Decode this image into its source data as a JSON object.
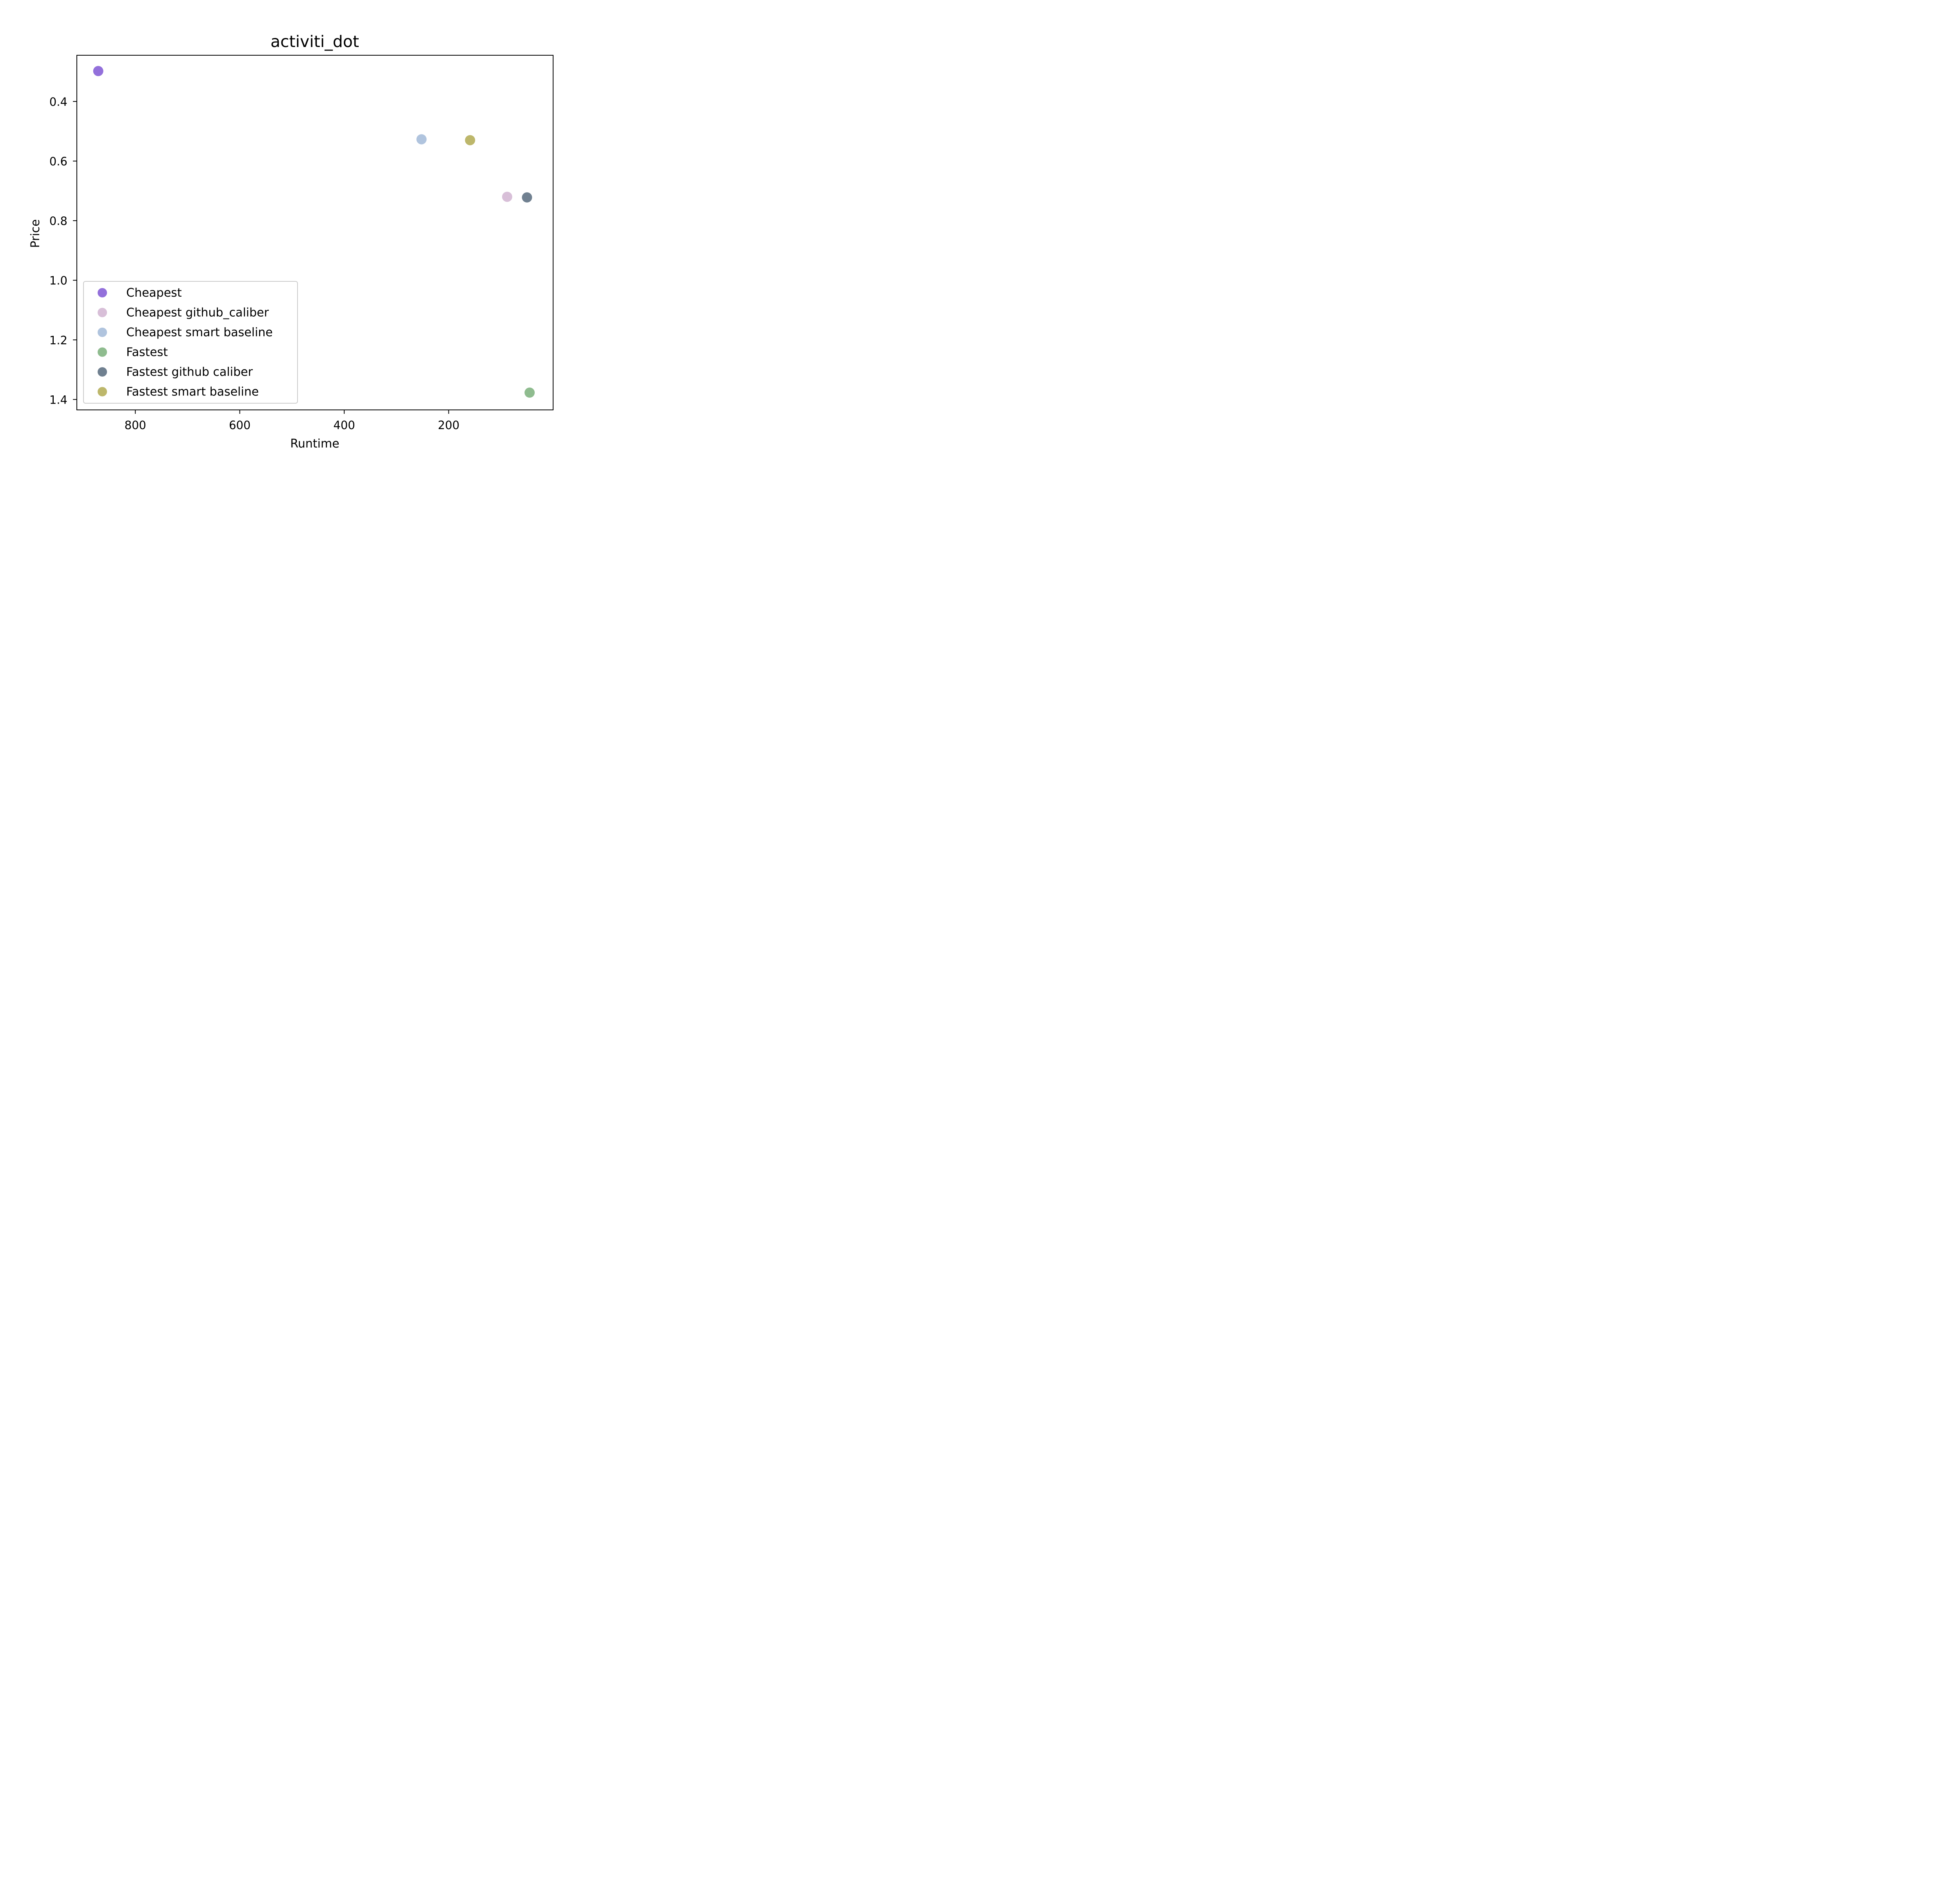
{
  "chart_data": {
    "type": "scatter",
    "title": "activiti_dot",
    "xlabel": "Runtime",
    "ylabel": "Price",
    "x_inverted": true,
    "y_inverted": true,
    "xlim": [
      912,
      0
    ],
    "ylim": [
      0.245,
      1.435
    ],
    "x_ticks": [
      800,
      600,
      400,
      200
    ],
    "y_ticks": [
      0.4,
      0.6,
      0.8,
      1.0,
      1.2,
      1.4
    ],
    "x_tick_labels": [
      "800",
      "600",
      "400",
      "200"
    ],
    "y_tick_labels": [
      "0.4",
      "0.6",
      "0.8",
      "1.0",
      "1.2",
      "1.4"
    ],
    "grid": false,
    "legend_position": "lower-left",
    "series": [
      {
        "name": "Cheapest",
        "color": "#9370db",
        "points": [
          {
            "x": 871,
            "y": 0.298
          }
        ]
      },
      {
        "name": "Cheapest github_caliber",
        "color": "#d8bfd8",
        "points": [
          {
            "x": 88,
            "y": 0.72
          }
        ]
      },
      {
        "name": "Cheapest smart baseline",
        "color": "#b0c4de",
        "points": [
          {
            "x": 252,
            "y": 0.527
          }
        ]
      },
      {
        "name": "Fastest",
        "color": "#8fbc8f",
        "points": [
          {
            "x": 45,
            "y": 1.377
          }
        ]
      },
      {
        "name": "Fastest github caliber",
        "color": "#708090",
        "points": [
          {
            "x": 50,
            "y": 0.722
          }
        ]
      },
      {
        "name": "Fastest smart baseline",
        "color": "#bdb76b",
        "points": [
          {
            "x": 159,
            "y": 0.53
          }
        ]
      }
    ]
  }
}
